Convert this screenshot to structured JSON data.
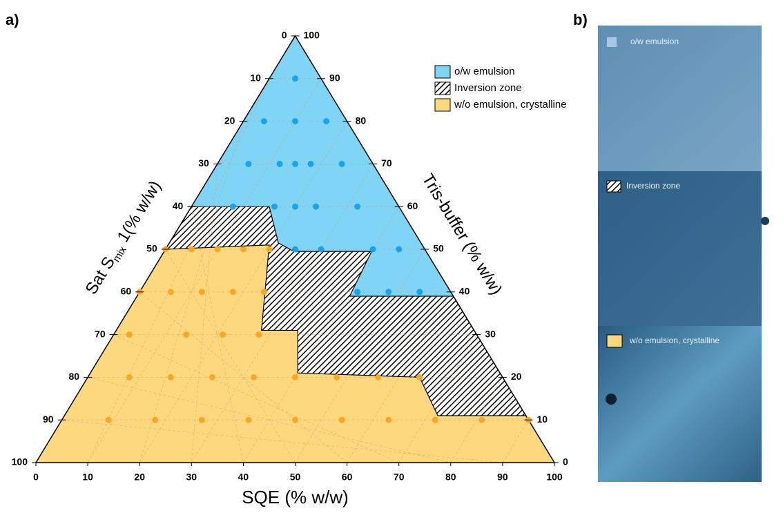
{
  "chart_data": {
    "type": "ternary",
    "x_label": "SQE (% w/w)",
    "left_label": [
      "Sat S",
      "mix",
      " 1(% w/w)"
    ],
    "right_label": "Tris-buffer (% w/w)",
    "xlim": [
      0,
      100
    ],
    "xticks": [
      0,
      10,
      20,
      30,
      40,
      50,
      60,
      70,
      80,
      90,
      100
    ],
    "left_ticks": [
      0,
      10,
      20,
      30,
      40,
      50,
      60,
      70,
      80,
      90,
      100
    ],
    "right_ticks": [
      0,
      10,
      20,
      30,
      40,
      50,
      60,
      70,
      80,
      90,
      100
    ],
    "grid": true,
    "regions": [
      {
        "name": "o/w emulsion",
        "color": "#80d4f6",
        "x": [
          0,
          0,
          15,
          21,
          25,
          40,
          41,
          61
        ],
        "values": [
          100,
          60,
          60,
          51.5,
          49.5,
          49.5,
          39,
          39
        ]
      },
      {
        "name": "Inversion zone",
        "color": "hatch",
        "x": [
          0,
          15,
          21,
          25,
          40,
          41,
          61,
          89,
          72,
          64,
          40,
          35,
          28,
          19.5,
          0
        ],
        "values": [
          60,
          60,
          51.5,
          49.5,
          49.5,
          39,
          39,
          11,
          11,
          20,
          21,
          31,
          31,
          51,
          50
        ]
      },
      {
        "name": "w/o emulsion, crystalline",
        "color": "#fdd87e",
        "x": [
          0,
          19.5,
          28,
          35,
          40,
          64,
          72,
          89,
          100,
          0
        ],
        "values": [
          50,
          51,
          31,
          31,
          21,
          20,
          11,
          11,
          0,
          0
        ]
      }
    ],
    "series": [
      {
        "color": "#1aa3e8",
        "x": [
          5,
          4,
          10,
          16,
          6,
          12,
          15,
          18,
          24,
          8,
          16,
          20,
          24,
          32,
          25,
          30,
          40,
          45,
          42,
          48,
          54
        ],
        "values": [
          90,
          80,
          80,
          80,
          70,
          70,
          70,
          70,
          70,
          60,
          60,
          60,
          60,
          60,
          50,
          50,
          50,
          50,
          40,
          40,
          40
        ]
      },
      {
        "color": "#f9a825",
        "x": [
          0,
          5,
          10,
          15,
          20,
          0,
          6,
          12,
          18,
          24,
          3,
          14,
          21,
          28,
          8,
          16,
          24,
          32,
          40,
          48,
          56,
          64,
          9,
          18,
          27,
          36,
          45,
          54,
          63,
          72,
          81,
          90
        ],
        "values": [
          50,
          50,
          50,
          50,
          50,
          40,
          40,
          40,
          40,
          40,
          30,
          30,
          30,
          30,
          20,
          20,
          20,
          20,
          20,
          20,
          20,
          20,
          10,
          10,
          10,
          10,
          10,
          10,
          10,
          10,
          10,
          10
        ]
      }
    ]
  },
  "panel_a": "a)",
  "panel_b": "b)",
  "micrograph_labels": [
    "o/w emulsion",
    "Inversion zone",
    "w/o emulsion, crystalline"
  ]
}
